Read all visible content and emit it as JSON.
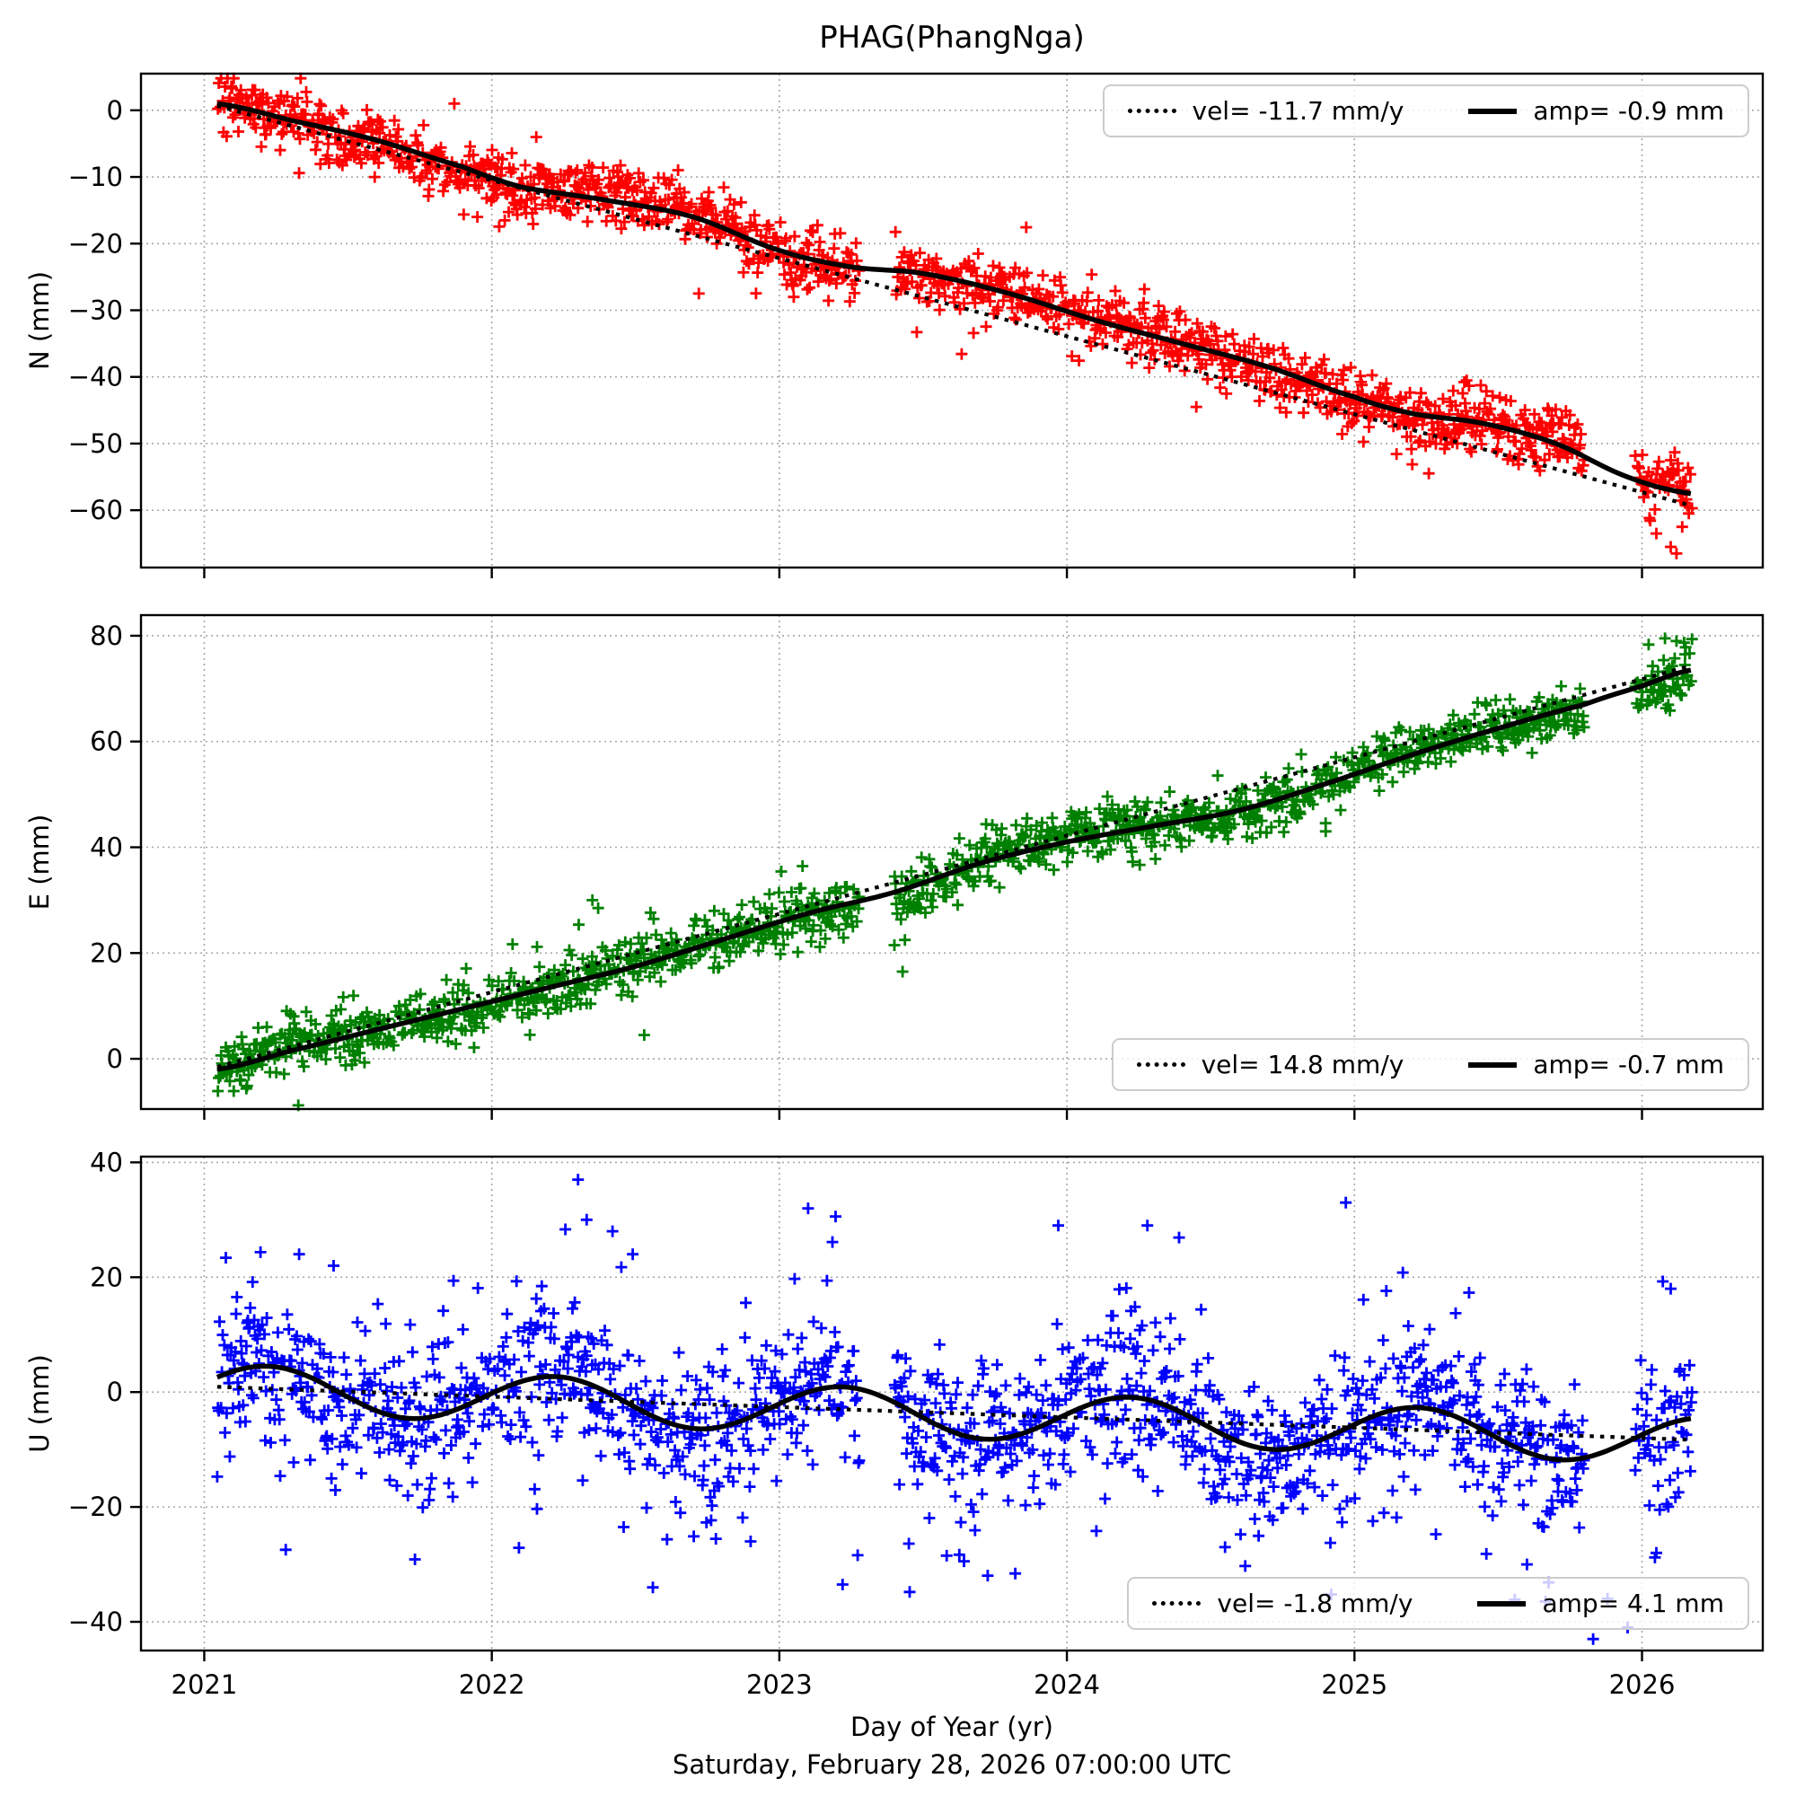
{
  "title": "PHAG(PhangNga)",
  "xlabel": "Day of Year (yr)",
  "caption": "Saturday, February 28, 2026 07:00:00 UTC",
  "xlim": [
    2020.78,
    2026.42
  ],
  "x_ticks": {
    "values": [
      2021,
      2022,
      2023,
      2024,
      2025,
      2026
    ],
    "labels": [
      "2021",
      "2022",
      "2023",
      "2024",
      "2025",
      "2026"
    ]
  },
  "grid_color": "#a8a8a8",
  "chart_data": [
    {
      "type": "scatter",
      "name": "N",
      "ylabel": "N (mm)",
      "marker": "+",
      "color": "#ff0000",
      "ylim": [
        -68.6,
        5.5
      ],
      "yticks": {
        "values": [
          0,
          -10,
          -20,
          -30,
          -40,
          -50,
          -60
        ],
        "labels": [
          "0",
          "−10",
          "−20",
          "−30",
          "−40",
          "−50",
          "−60"
        ]
      },
      "legend": {
        "vel_label": "vel= -11.7 mm/y",
        "amp_label": "amp= -0.9 mm",
        "position": "upper right"
      },
      "trend": {
        "t0": 2021.0,
        "y0": 1.2,
        "velocity_mm_per_yr": -11.7,
        "t_start": 2021.045,
        "t_end": 2026.17
      },
      "model_curve_knots": {
        "t": [
          2021.045,
          2021.3,
          2021.6,
          2021.9,
          2022.1,
          2022.4,
          2022.7,
          2023.0,
          2023.25,
          2023.5,
          2023.8,
          2024.1,
          2024.4,
          2024.7,
          2025.0,
          2025.2,
          2025.45,
          2025.7,
          2025.95,
          2026.17
        ],
        "y": [
          1.0,
          -1.5,
          -4.5,
          -8.5,
          -11.5,
          -13.5,
          -16.0,
          -21.0,
          -23.5,
          -24.5,
          -27.5,
          -31.5,
          -35.0,
          -38.5,
          -43.0,
          -45.5,
          -47.0,
          -50.0,
          -55.0,
          -57.5
        ]
      },
      "scatter_model": {
        "t_start": 2021.045,
        "t_end": 2026.175,
        "points_per_year": 365,
        "dropout": 0.15,
        "noise_std": 2.3,
        "heavy_frac": 0.05,
        "heavy_mult": 2.1,
        "wander_amp": 0.9,
        "wander_period": 1.6,
        "wander_phase": 1.0,
        "seed": 101,
        "gaps": [
          [
            2023.28,
            2023.4
          ],
          [
            2025.8,
            2025.975
          ]
        ]
      },
      "outliers": [
        [
          2022.72,
          -27.5
        ],
        [
          2023.05,
          -28.0
        ],
        [
          2021.95,
          -16.0
        ],
        [
          2024.45,
          -44.5
        ],
        [
          2026.05,
          -63.5
        ],
        [
          2026.1,
          -65.5
        ],
        [
          2026.12,
          -66.5
        ],
        [
          2026.14,
          -62.5
        ]
      ]
    },
    {
      "type": "scatter",
      "name": "E",
      "ylabel": "E (mm)",
      "marker": "+",
      "color": "#008000",
      "ylim": [
        -9.5,
        83.9
      ],
      "yticks": {
        "values": [
          80,
          60,
          40,
          20,
          0
        ],
        "labels": [
          "80",
          "60",
          "40",
          "20",
          "0"
        ]
      },
      "legend": {
        "vel_label": "vel= 14.8 mm/y",
        "amp_label": "amp= -0.7 mm",
        "position": "lower right"
      },
      "trend": {
        "t0": 2021.0,
        "y0": -2.2,
        "velocity_mm_per_yr": 14.8,
        "t_start": 2021.045,
        "t_end": 2026.17
      },
      "model_curve_knots": {
        "t": [
          2021.045,
          2021.3,
          2021.6,
          2021.9,
          2022.2,
          2022.5,
          2022.8,
          2023.1,
          2023.4,
          2023.7,
          2024.0,
          2024.3,
          2024.6,
          2024.9,
          2025.2,
          2025.5,
          2025.8,
          2026.0,
          2026.17
        ],
        "y": [
          -2.0,
          1.5,
          5.5,
          9.5,
          13.5,
          17.5,
          22.5,
          27.5,
          31.5,
          37.0,
          41.0,
          44.0,
          47.0,
          52.0,
          57.5,
          62.5,
          67.0,
          70.5,
          73.5
        ]
      },
      "scatter_model": {
        "t_start": 2021.045,
        "t_end": 2026.175,
        "points_per_year": 365,
        "dropout": 0.15,
        "noise_std": 2.5,
        "heavy_frac": 0.05,
        "heavy_mult": 2.0,
        "wander_amp": 1.0,
        "wander_period": 1.3,
        "wander_phase": 2.4,
        "seed": 202,
        "gaps": [
          [
            2023.28,
            2023.4
          ],
          [
            2025.8,
            2025.975
          ]
        ]
      },
      "outliers": [
        [
          2022.53,
          4.5
        ],
        [
          2022.35,
          30.0
        ],
        [
          2022.37,
          28.5
        ],
        [
          2021.3,
          8.5
        ],
        [
          2023.4,
          21.5
        ],
        [
          2024.9,
          43.0
        ],
        [
          2026.08,
          79.5
        ],
        [
          2026.12,
          79.0
        ],
        [
          2026.15,
          76.5
        ]
      ]
    },
    {
      "type": "scatter",
      "name": "U",
      "ylabel": "U (mm)",
      "marker": "+",
      "color": "#0000ff",
      "ylim": [
        -45.0,
        41.0
      ],
      "yticks": {
        "values": [
          40,
          20,
          0,
          -20,
          -40
        ],
        "labels": [
          "40",
          "20",
          "0",
          "−20",
          "−40"
        ]
      },
      "legend": {
        "vel_label": "vel= -1.8 mm/y",
        "amp_label": "amp= 4.1 mm",
        "position": "lower right"
      },
      "trend": {
        "t0": 2021.0,
        "y0": 1.0,
        "velocity_mm_per_yr": -1.8,
        "t_start": 2021.045,
        "t_end": 2026.17
      },
      "model_curve_formula": {
        "intercept": 0.8,
        "velocity_mm_per_yr": -1.8,
        "seasonal_amp_mm": 4.1,
        "peak_epoch": 2021.22,
        "t_start": 2021.045,
        "t_end": 2026.17
      },
      "scatter_model": {
        "t_start": 2021.045,
        "t_end": 2026.175,
        "points_per_year": 365,
        "dropout": 0.15,
        "noise_std": 6.5,
        "heavy_frac": 0.2,
        "heavy_std": 12.5,
        "clamp": [
          -42.5,
          38.0
        ],
        "wander_amp": 1.2,
        "wander_period": 1.1,
        "wander_phase": 0.4,
        "seed": 303,
        "gaps": [
          [
            2023.28,
            2023.4
          ],
          [
            2025.8,
            2025.975
          ]
        ]
      },
      "outliers": [
        [
          2021.33,
          24.0
        ],
        [
          2021.45,
          22.0
        ],
        [
          2022.3,
          37.0
        ],
        [
          2022.33,
          30.0
        ],
        [
          2022.42,
          28.0
        ],
        [
          2022.49,
          24.0
        ],
        [
          2022.56,
          -34.0
        ],
        [
          2022.9,
          -26.0
        ],
        [
          2023.1,
          32.0
        ],
        [
          2023.22,
          -33.5
        ],
        [
          2023.97,
          29.0
        ],
        [
          2024.28,
          29.0
        ],
        [
          2024.55,
          -27.0
        ],
        [
          2024.97,
          33.0
        ],
        [
          2025.6,
          -30.0
        ],
        [
          2025.83,
          -43.0
        ],
        [
          2025.88,
          -36.0
        ],
        [
          2025.95,
          -41.0
        ],
        [
          2026.05,
          -28.0
        ],
        [
          2026.1,
          18.0
        ]
      ]
    }
  ]
}
